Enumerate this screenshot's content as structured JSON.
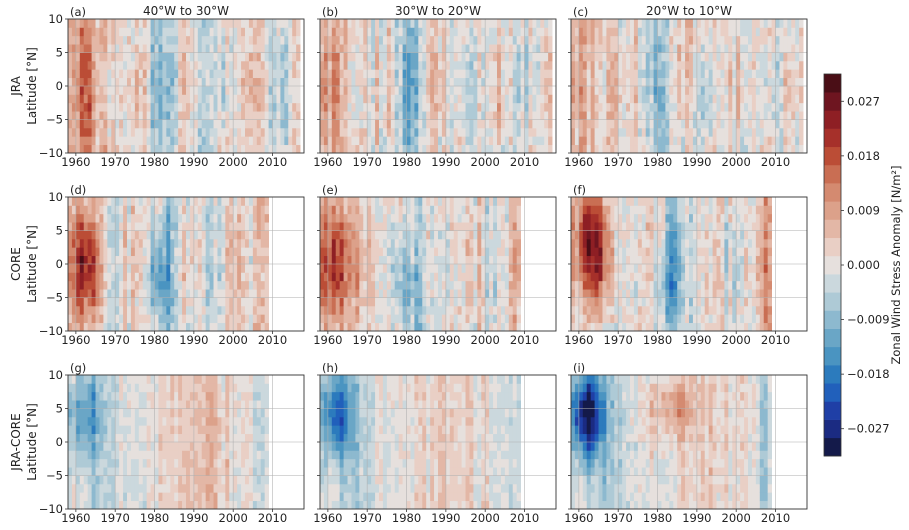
{
  "chart_data": {
    "type": "heatmap",
    "colorbar": {
      "label": "Zonal Wind Stress Anomaly [N/m²]",
      "ticks": [
        "0.027",
        "0.018",
        "0.009",
        "0.000",
        "−0.009",
        "−0.018",
        "−0.027"
      ],
      "tick_values": [
        0.027,
        0.018,
        0.009,
        0.0,
        -0.009,
        -0.018,
        -0.027
      ],
      "range": [
        -0.0315,
        0.0315
      ],
      "levels": 21,
      "colors": [
        "#141a4a",
        "#1b2b82",
        "#1f3fa6",
        "#2160bb",
        "#2c7bbd",
        "#4a94c1",
        "#6aa6c6",
        "#8db9cf",
        "#aecad6",
        "#cbd8dd",
        "#e6e0dd",
        "#e9cfc5",
        "#e3b7a6",
        "#dca18a",
        "#d48a70",
        "#c96e53",
        "#bb4d36",
        "#a6302a",
        "#8e1f24",
        "#6e1520",
        "#4a0e16"
      ]
    },
    "panels": [
      {
        "id": "a",
        "letter": "(a)",
        "title": "40°W to 30°W",
        "row_label": "JRA",
        "dataset": "JRA",
        "years": [
          1958,
          2017
        ]
      },
      {
        "id": "b",
        "letter": "(b)",
        "title": "30°W to 20°W",
        "dataset": "JRA",
        "years": [
          1958,
          2017
        ]
      },
      {
        "id": "c",
        "letter": "(c)",
        "title": "20°W to 10°W",
        "dataset": "JRA",
        "years": [
          1958,
          2017
        ]
      },
      {
        "id": "d",
        "letter": "(d)",
        "row_label": "CORE",
        "dataset": "CORE",
        "years": [
          1958,
          2009
        ]
      },
      {
        "id": "e",
        "letter": "(e)",
        "dataset": "CORE",
        "years": [
          1958,
          2009
        ]
      },
      {
        "id": "f",
        "letter": "(f)",
        "dataset": "CORE",
        "years": [
          1958,
          2009
        ]
      },
      {
        "id": "g",
        "letter": "(g)",
        "row_label": "JRA-CORE",
        "dataset": "JRA-CORE",
        "years": [
          1958,
          2009
        ]
      },
      {
        "id": "h",
        "letter": "(h)",
        "dataset": "JRA-CORE",
        "years": [
          1958,
          2009
        ]
      },
      {
        "id": "i",
        "letter": "(i)",
        "dataset": "JRA-CORE",
        "years": [
          1958,
          2009
        ]
      }
    ],
    "ylabel": "Latitude [°N]",
    "ylim": [
      -10,
      10
    ],
    "yticks": [
      -10,
      -5,
      0,
      5,
      10
    ],
    "xlim": [
      1958,
      2018
    ],
    "xticks": [
      1960,
      1970,
      1980,
      1990,
      2000,
      2010
    ],
    "grid": true
  }
}
